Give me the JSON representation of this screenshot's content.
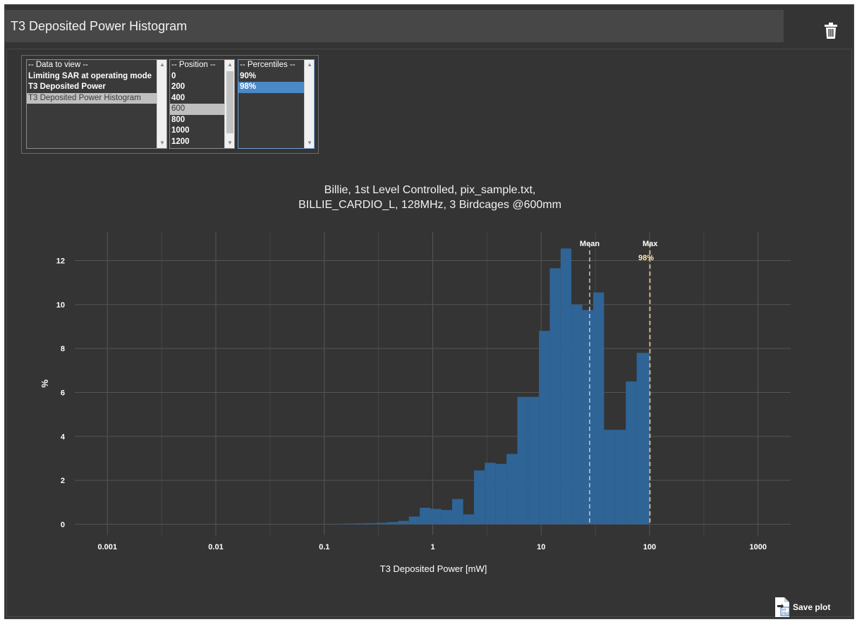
{
  "panel": {
    "title": "T3 Deposited Power Histogram"
  },
  "icons": {
    "delete": "trash-icon",
    "save": "file-export-icon"
  },
  "selectors": {
    "data_to_view": {
      "header": "-- Data to view --",
      "options": [
        "Limiting SAR at operating mode",
        "T3 Deposited Power",
        "T3 Deposited Power Histogram"
      ],
      "selected": "T3 Deposited Power Histogram"
    },
    "position": {
      "header": "-- Position --",
      "options": [
        "0",
        "200",
        "400",
        "600",
        "800",
        "1000",
        "1200"
      ],
      "selected": "600"
    },
    "percentiles": {
      "header": "-- Percentiles --",
      "options": [
        "90%",
        "98%"
      ],
      "selected": "98%"
    }
  },
  "plot": {
    "title_line1": "Billie, 1st Level Controlled, pix_sample.txt,",
    "title_line2": "BILLIE_CARDIO_L, 128MHz, 3 Birdcages @600mm"
  },
  "save_button": {
    "label": "Save plot"
  },
  "colors": {
    "panel_bg": "#343434",
    "header_bg": "#474747",
    "bar": "#2f6496",
    "mean_line": "#d9d9d9",
    "max_line": "#e8a33a",
    "grid": "#555555",
    "selection_blue": "#4a88c7"
  },
  "chart_data": {
    "type": "bar",
    "xlabel": "T3 Deposited Power [mW]",
    "ylabel": "%",
    "x_scale": "log",
    "xlim": [
      0.0005,
      2000
    ],
    "ylim": [
      -0.5,
      13.3
    ],
    "x_ticks": [
      0.001,
      0.01,
      0.1,
      1,
      10,
      100,
      1000
    ],
    "x_tick_labels": [
      "0.001",
      "0.01",
      "0.1",
      "1",
      "10",
      "100",
      "1000"
    ],
    "y_ticks": [
      0,
      2,
      4,
      6,
      8,
      10,
      12
    ],
    "grid": true,
    "bins": [
      {
        "x0": 0.12,
        "x1": 0.151,
        "y": 0.02
      },
      {
        "x0": 0.151,
        "x1": 0.19,
        "y": 0.03
      },
      {
        "x0": 0.19,
        "x1": 0.24,
        "y": 0.04
      },
      {
        "x0": 0.24,
        "x1": 0.302,
        "y": 0.05
      },
      {
        "x0": 0.302,
        "x1": 0.38,
        "y": 0.07
      },
      {
        "x0": 0.38,
        "x1": 0.479,
        "y": 0.1
      },
      {
        "x0": 0.479,
        "x1": 0.603,
        "y": 0.15
      },
      {
        "x0": 0.603,
        "x1": 0.759,
        "y": 0.35
      },
      {
        "x0": 0.759,
        "x1": 0.955,
        "y": 0.75
      },
      {
        "x0": 0.955,
        "x1": 1.2,
        "y": 0.7
      },
      {
        "x0": 1.2,
        "x1": 1.51,
        "y": 0.65
      },
      {
        "x0": 1.51,
        "x1": 1.91,
        "y": 1.15
      },
      {
        "x0": 1.91,
        "x1": 2.4,
        "y": 0.45
      },
      {
        "x0": 2.4,
        "x1": 3.02,
        "y": 2.45
      },
      {
        "x0": 3.02,
        "x1": 3.8,
        "y": 2.8
      },
      {
        "x0": 3.8,
        "x1": 4.79,
        "y": 2.75
      },
      {
        "x0": 4.79,
        "x1": 6.03,
        "y": 3.2
      },
      {
        "x0": 6.03,
        "x1": 7.59,
        "y": 5.8
      },
      {
        "x0": 7.59,
        "x1": 9.55,
        "y": 5.8
      },
      {
        "x0": 9.55,
        "x1": 12.0,
        "y": 8.8
      },
      {
        "x0": 12.0,
        "x1": 15.1,
        "y": 11.65
      },
      {
        "x0": 15.1,
        "x1": 19.0,
        "y": 12.55
      },
      {
        "x0": 19.0,
        "x1": 24.0,
        "y": 10.0
      },
      {
        "x0": 24.0,
        "x1": 30.2,
        "y": 9.75
      },
      {
        "x0": 30.2,
        "x1": 38.0,
        "y": 10.55
      },
      {
        "x0": 38.0,
        "x1": 47.9,
        "y": 4.3
      },
      {
        "x0": 47.9,
        "x1": 60.3,
        "y": 4.3
      },
      {
        "x0": 60.3,
        "x1": 75.9,
        "y": 6.5
      },
      {
        "x0": 75.9,
        "x1": 101,
        "y": 7.8
      }
    ],
    "vlines": [
      {
        "label": "Mean",
        "x": 28,
        "style": "dashed",
        "color": "#d9d9d9"
      },
      {
        "label": "Max",
        "x": 101,
        "style": "dashed",
        "color": "#d9d9d9"
      },
      {
        "label": "98%",
        "x": 100,
        "style": "dashed",
        "color": "#e8a33a"
      }
    ]
  }
}
